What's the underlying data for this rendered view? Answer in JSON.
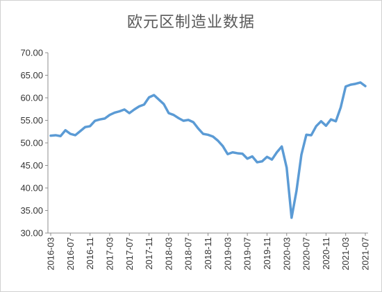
{
  "chart_data": {
    "type": "line",
    "title": "欧元区制造业数据",
    "xlabel": "",
    "ylabel": "",
    "ylim": [
      30,
      70
    ],
    "y_ticks": [
      "30.00",
      "35.00",
      "40.00",
      "45.00",
      "50.00",
      "55.00",
      "60.00",
      "65.00",
      "70.00"
    ],
    "x_tick_labels": [
      "2016-03",
      "2016-07",
      "2016-11",
      "2017-03",
      "2017-07",
      "2017-11",
      "2018-03",
      "2018-07",
      "2018-11",
      "2019-03",
      "2019-07",
      "2019-11",
      "2020-03",
      "2020-07",
      "2020-11",
      "2021-03",
      "2021-07"
    ],
    "grid": false,
    "legend": "none",
    "series": [
      {
        "color": "#5b9bd5",
        "x": [
          "2016-03",
          "2016-04",
          "2016-05",
          "2016-06",
          "2016-07",
          "2016-08",
          "2016-09",
          "2016-10",
          "2016-11",
          "2016-12",
          "2017-01",
          "2017-02",
          "2017-03",
          "2017-04",
          "2017-05",
          "2017-06",
          "2017-07",
          "2017-08",
          "2017-09",
          "2017-10",
          "2017-11",
          "2017-12",
          "2018-01",
          "2018-02",
          "2018-03",
          "2018-04",
          "2018-05",
          "2018-06",
          "2018-07",
          "2018-08",
          "2018-09",
          "2018-10",
          "2018-11",
          "2018-12",
          "2019-01",
          "2019-02",
          "2019-03",
          "2019-04",
          "2019-05",
          "2019-06",
          "2019-07",
          "2019-08",
          "2019-09",
          "2019-10",
          "2019-11",
          "2019-12",
          "2020-01",
          "2020-02",
          "2020-03",
          "2020-04",
          "2020-05",
          "2020-06",
          "2020-07",
          "2020-08",
          "2020-09",
          "2020-10",
          "2020-11",
          "2020-12",
          "2021-01",
          "2021-02",
          "2021-03",
          "2021-04",
          "2021-05",
          "2021-06",
          "2021-07"
        ],
        "values": [
          51.6,
          51.7,
          51.5,
          52.8,
          52.0,
          51.7,
          52.6,
          53.5,
          53.7,
          54.9,
          55.2,
          55.4,
          56.2,
          56.7,
          57.0,
          57.4,
          56.6,
          57.4,
          58.1,
          58.5,
          60.1,
          60.6,
          59.6,
          58.6,
          56.6,
          56.2,
          55.5,
          54.9,
          55.1,
          54.6,
          53.2,
          52.0,
          51.8,
          51.4,
          50.5,
          49.3,
          47.5,
          47.9,
          47.7,
          47.6,
          46.5,
          47.0,
          45.7,
          45.9,
          46.9,
          46.3,
          47.9,
          49.2,
          44.5,
          33.4,
          39.4,
          47.4,
          51.8,
          51.7,
          53.7,
          54.8,
          53.8,
          55.2,
          54.8,
          57.9,
          62.5,
          62.9,
          63.1,
          63.4,
          62.6
        ]
      }
    ]
  }
}
